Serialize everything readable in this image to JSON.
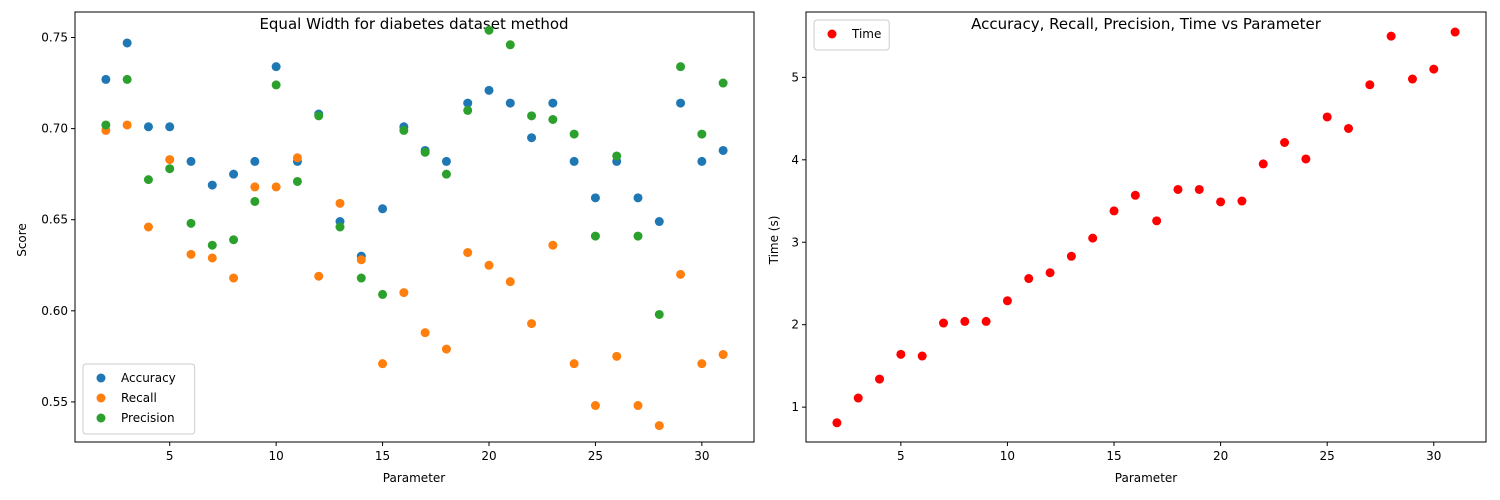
{
  "chart_data": [
    {
      "type": "scatter",
      "title": "Equal Width for diabetes dataset method",
      "xlabel": "Parameter",
      "ylabel": "Score",
      "xlim": [
        0.55,
        32.45
      ],
      "ylim": [
        0.528,
        0.764
      ],
      "xticks": [
        5,
        10,
        15,
        20,
        25,
        30
      ],
      "yticks": [
        0.55,
        0.6,
        0.65,
        0.7,
        0.75
      ],
      "ytick_labels": [
        "0.55",
        "0.60",
        "0.65",
        "0.70",
        "0.75"
      ],
      "grid": false,
      "legend_position": "lower-left",
      "x": [
        2,
        3,
        4,
        5,
        6,
        7,
        8,
        9,
        10,
        11,
        12,
        13,
        14,
        15,
        16,
        17,
        18,
        19,
        20,
        21,
        22,
        23,
        24,
        25,
        26,
        27,
        28,
        29,
        30,
        31
      ],
      "series": [
        {
          "name": "Accuracy",
          "color": "#1f77b4",
          "values": [
            0.727,
            0.747,
            0.701,
            0.701,
            0.682,
            0.669,
            0.675,
            0.682,
            0.734,
            0.682,
            0.708,
            0.649,
            0.63,
            0.656,
            0.701,
            0.688,
            0.682,
            0.714,
            0.721,
            0.714,
            0.695,
            0.714,
            0.682,
            0.662,
            0.682,
            0.662,
            0.649,
            0.714,
            0.682,
            0.688
          ]
        },
        {
          "name": "Recall",
          "color": "#ff7f0e",
          "values": [
            0.699,
            0.702,
            0.646,
            0.683,
            0.631,
            0.629,
            0.618,
            0.668,
            0.668,
            0.684,
            0.619,
            0.659,
            0.628,
            0.571,
            0.61,
            0.588,
            0.579,
            0.632,
            0.625,
            0.616,
            0.593,
            0.636,
            0.571,
            0.548,
            0.575,
            0.548,
            0.537,
            0.62,
            0.571,
            0.576
          ]
        },
        {
          "name": "Precision",
          "color": "#2ca02c",
          "values": [
            0.702,
            0.727,
            0.672,
            0.678,
            0.648,
            0.636,
            0.639,
            0.66,
            0.724,
            0.671,
            0.707,
            0.646,
            0.618,
            0.609,
            0.699,
            0.687,
            0.675,
            0.71,
            0.754,
            0.746,
            0.707,
            0.705,
            0.697,
            0.641,
            0.685,
            0.641,
            0.598,
            0.734,
            0.697,
            0.725
          ]
        }
      ]
    },
    {
      "type": "scatter",
      "title": "Accuracy, Recall, Precision, Time vs Parameter",
      "xlabel": "Parameter",
      "ylabel": "Time (s)",
      "xlim": [
        0.55,
        32.45
      ],
      "ylim": [
        0.577,
        5.793
      ],
      "xticks": [
        5,
        10,
        15,
        20,
        25,
        30
      ],
      "yticks": [
        1,
        2,
        3,
        4,
        5
      ],
      "ytick_labels": [
        "1",
        "2",
        "3",
        "4",
        "5"
      ],
      "grid": false,
      "legend_position": "upper-left",
      "x": [
        2,
        3,
        4,
        5,
        6,
        7,
        8,
        9,
        10,
        11,
        12,
        13,
        14,
        15,
        16,
        17,
        18,
        19,
        20,
        21,
        22,
        23,
        24,
        25,
        26,
        27,
        28,
        29,
        30,
        31
      ],
      "series": [
        {
          "name": "Time",
          "color": "#ff0000",
          "values": [
            0.81,
            1.11,
            1.34,
            1.64,
            1.62,
            2.02,
            2.04,
            2.04,
            2.29,
            2.56,
            2.63,
            2.83,
            3.05,
            3.38,
            3.57,
            3.26,
            3.64,
            3.64,
            3.49,
            3.5,
            3.95,
            4.21,
            4.01,
            4.52,
            4.38,
            4.91,
            5.5,
            4.98,
            5.1,
            5.55
          ]
        }
      ]
    }
  ]
}
